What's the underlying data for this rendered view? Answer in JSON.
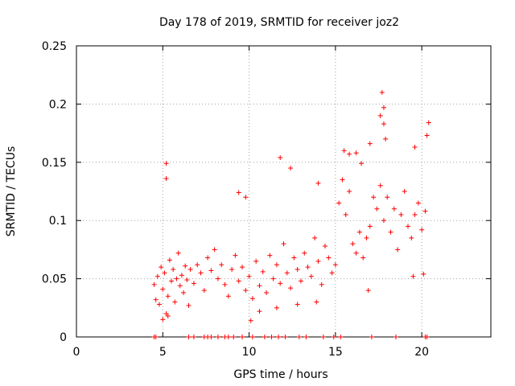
{
  "chart_data": {
    "type": "scatter",
    "title": "Day 178 of 2019, SRMTID for receiver joz2",
    "xlabel": "GPS time / hours",
    "ylabel": "SRMTID / TECUs",
    "xlim": [
      0,
      24
    ],
    "ylim": [
      0,
      0.25
    ],
    "xticks": [
      0,
      5,
      10,
      15,
      20
    ],
    "yticks": [
      0,
      0.05,
      0.1,
      0.15,
      0.2,
      0.25
    ],
    "xtick_labels": [
      "0",
      "5",
      "10",
      "15",
      "20"
    ],
    "ytick_labels": [
      "0",
      "0.05",
      "0.1",
      "0.15",
      "0.2",
      "0.25"
    ],
    "grid": true,
    "marker": "+",
    "marker_color": "#ff0000",
    "series": [
      {
        "name": "SRMTID",
        "points": [
          [
            4.5,
            0.045
          ],
          [
            4.6,
            0.032
          ],
          [
            4.7,
            0.052
          ],
          [
            4.8,
            0.028
          ],
          [
            4.9,
            0.06
          ],
          [
            5.0,
            0.041
          ],
          [
            5.1,
            0.055
          ],
          [
            5.2,
            0.02
          ],
          [
            5.3,
            0.035
          ],
          [
            5.4,
            0.066
          ],
          [
            5.5,
            0.048
          ],
          [
            5.6,
            0.058
          ],
          [
            5.7,
            0.03
          ],
          [
            5.8,
            0.05
          ],
          [
            5.9,
            0.072
          ],
          [
            6.0,
            0.044
          ],
          [
            6.1,
            0.053
          ],
          [
            6.2,
            0.038
          ],
          [
            6.3,
            0.061
          ],
          [
            6.4,
            0.049
          ],
          [
            6.5,
            0.027
          ],
          [
            6.6,
            0.058
          ],
          [
            6.8,
            0.046
          ],
          [
            7.0,
            0.062
          ],
          [
            7.2,
            0.055
          ],
          [
            7.4,
            0.04
          ],
          [
            7.6,
            0.068
          ],
          [
            7.8,
            0.057
          ],
          [
            8.0,
            0.075
          ],
          [
            8.2,
            0.05
          ],
          [
            8.4,
            0.062
          ],
          [
            8.6,
            0.045
          ],
          [
            8.8,
            0.035
          ],
          [
            9.0,
            0.058
          ],
          [
            9.2,
            0.07
          ],
          [
            9.4,
            0.048
          ],
          [
            9.6,
            0.06
          ],
          [
            9.8,
            0.04
          ],
          [
            10.0,
            0.052
          ],
          [
            10.2,
            0.033
          ],
          [
            10.4,
            0.065
          ],
          [
            10.6,
            0.044
          ],
          [
            10.8,
            0.056
          ],
          [
            11.0,
            0.038
          ],
          [
            11.2,
            0.07
          ],
          [
            11.4,
            0.05
          ],
          [
            11.6,
            0.062
          ],
          [
            11.8,
            0.046
          ],
          [
            12.0,
            0.08
          ],
          [
            12.2,
            0.055
          ],
          [
            12.4,
            0.042
          ],
          [
            12.6,
            0.068
          ],
          [
            12.8,
            0.058
          ],
          [
            13.0,
            0.048
          ],
          [
            13.2,
            0.072
          ],
          [
            13.4,
            0.06
          ],
          [
            13.6,
            0.052
          ],
          [
            13.8,
            0.085
          ],
          [
            14.0,
            0.065
          ],
          [
            14.2,
            0.045
          ],
          [
            14.4,
            0.078
          ],
          [
            14.6,
            0.068
          ],
          [
            14.8,
            0.055
          ],
          [
            15.0,
            0.062
          ],
          [
            15.2,
            0.115
          ],
          [
            15.4,
            0.135
          ],
          [
            15.6,
            0.105
          ],
          [
            15.8,
            0.125
          ],
          [
            16.0,
            0.08
          ],
          [
            16.2,
            0.072
          ],
          [
            16.4,
            0.09
          ],
          [
            16.6,
            0.068
          ],
          [
            16.8,
            0.085
          ],
          [
            17.0,
            0.095
          ],
          [
            17.2,
            0.12
          ],
          [
            17.4,
            0.11
          ],
          [
            17.6,
            0.13
          ],
          [
            17.8,
            0.1
          ],
          [
            18.0,
            0.12
          ],
          [
            18.2,
            0.09
          ],
          [
            18.4,
            0.11
          ],
          [
            18.6,
            0.075
          ],
          [
            18.8,
            0.105
          ],
          [
            19.0,
            0.125
          ],
          [
            19.2,
            0.095
          ],
          [
            19.4,
            0.085
          ],
          [
            19.6,
            0.105
          ],
          [
            19.8,
            0.115
          ],
          [
            20.0,
            0.092
          ],
          [
            20.2,
            0.108
          ],
          [
            5.2,
            0.149
          ],
          [
            5.2,
            0.136
          ],
          [
            11.8,
            0.154
          ],
          [
            17.7,
            0.21
          ],
          [
            17.8,
            0.197
          ],
          [
            17.6,
            0.19
          ],
          [
            17.8,
            0.183
          ],
          [
            17.9,
            0.17
          ],
          [
            20.4,
            0.184
          ],
          [
            20.3,
            0.173
          ],
          [
            19.6,
            0.163
          ],
          [
            15.5,
            0.16
          ],
          [
            15.8,
            0.157
          ],
          [
            16.2,
            0.158
          ],
          [
            16.5,
            0.149
          ],
          [
            17.0,
            0.166
          ],
          [
            14.0,
            0.132
          ],
          [
            12.4,
            0.145
          ],
          [
            9.4,
            0.124
          ],
          [
            9.8,
            0.12
          ],
          [
            5.0,
            0.015
          ],
          [
            5.3,
            0.018
          ],
          [
            10.1,
            0.014
          ],
          [
            10.6,
            0.022
          ],
          [
            11.6,
            0.025
          ],
          [
            12.8,
            0.028
          ],
          [
            13.9,
            0.03
          ],
          [
            16.9,
            0.04
          ],
          [
            19.5,
            0.052
          ],
          [
            20.1,
            0.054
          ],
          [
            4.5,
            0.0
          ],
          [
            4.6,
            0.0
          ],
          [
            6.5,
            0.0
          ],
          [
            6.8,
            0.0
          ],
          [
            7.4,
            0.0
          ],
          [
            7.6,
            0.0
          ],
          [
            7.8,
            0.0
          ],
          [
            8.2,
            0.0
          ],
          [
            8.6,
            0.0
          ],
          [
            8.8,
            0.0
          ],
          [
            9.1,
            0.0
          ],
          [
            9.6,
            0.0
          ],
          [
            10.2,
            0.0
          ],
          [
            10.9,
            0.0
          ],
          [
            11.3,
            0.0
          ],
          [
            11.7,
            0.0
          ],
          [
            12.1,
            0.0
          ],
          [
            12.9,
            0.0
          ],
          [
            13.3,
            0.0
          ],
          [
            14.3,
            0.0
          ],
          [
            14.9,
            0.0
          ],
          [
            15.3,
            0.0
          ],
          [
            17.1,
            0.0
          ],
          [
            18.5,
            0.0
          ],
          [
            20.2,
            0.0
          ],
          [
            20.3,
            0.0
          ]
        ]
      }
    ]
  }
}
